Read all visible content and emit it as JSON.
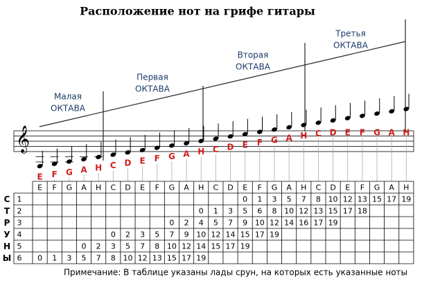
{
  "title": "Расположение нот на грифе гитары",
  "octaves": [
    {
      "name": "Малая",
      "label": "ОКТАВА"
    },
    {
      "name": "Первая",
      "label": "ОКТАВА"
    },
    {
      "name": "Вторая",
      "label": "ОКТАВА"
    },
    {
      "name": "Третья",
      "label": "ОКТАВА"
    }
  ],
  "notes": [
    "E",
    "F",
    "G",
    "A",
    "H",
    "C",
    "D",
    "E",
    "F",
    "G",
    "A",
    "H",
    "C",
    "D",
    "E",
    "F",
    "G",
    "A",
    "H",
    "C",
    "D",
    "E",
    "F",
    "G",
    "A",
    "H"
  ],
  "table": {
    "side_label": [
      "С",
      "Т",
      "Р",
      "У",
      "Н",
      "Ы"
    ],
    "header": [
      "E",
      "F",
      "G",
      "A",
      "H",
      "C",
      "D",
      "E",
      "F",
      "G",
      "A",
      "H",
      "C",
      "D",
      "E",
      "F",
      "G",
      "A",
      "H",
      "C",
      "D",
      "E",
      "F",
      "G",
      "A",
      "H"
    ],
    "rows": [
      {
        "string": "1",
        "cells": [
          null,
          null,
          null,
          null,
          null,
          null,
          null,
          null,
          null,
          null,
          null,
          null,
          null,
          null,
          0,
          1,
          3,
          5,
          7,
          8,
          10,
          12,
          13,
          15,
          17,
          19
        ]
      },
      {
        "string": "2",
        "cells": [
          null,
          null,
          null,
          null,
          null,
          null,
          null,
          null,
          null,
          null,
          null,
          0,
          1,
          3,
          5,
          6,
          8,
          10,
          12,
          13,
          15,
          17,
          18,
          null,
          null,
          null
        ]
      },
      {
        "string": "3",
        "cells": [
          null,
          null,
          null,
          null,
          null,
          null,
          null,
          null,
          null,
          0,
          2,
          4,
          5,
          7,
          9,
          10,
          12,
          14,
          16,
          17,
          19,
          null,
          null,
          null,
          null,
          null
        ]
      },
      {
        "string": "4",
        "cells": [
          null,
          null,
          null,
          null,
          null,
          0,
          2,
          3,
          5,
          7,
          9,
          10,
          12,
          14,
          15,
          17,
          19,
          null,
          null,
          null,
          null,
          null,
          null,
          null,
          null,
          null
        ]
      },
      {
        "string": "5",
        "cells": [
          null,
          null,
          null,
          0,
          2,
          3,
          5,
          7,
          8,
          10,
          12,
          14,
          15,
          17,
          19,
          null,
          null,
          null,
          null,
          null,
          null,
          null,
          null,
          null,
          null,
          null
        ]
      },
      {
        "string": "6",
        "cells": [
          0,
          1,
          3,
          5,
          7,
          8,
          10,
          12,
          13,
          15,
          17,
          19,
          null,
          null,
          null,
          null,
          null,
          null,
          null,
          null,
          null,
          null,
          null,
          null,
          null,
          null
        ]
      }
    ]
  },
  "note": "Примечание: В таблице указаны лады срун, на которых есть указанные ноты"
}
